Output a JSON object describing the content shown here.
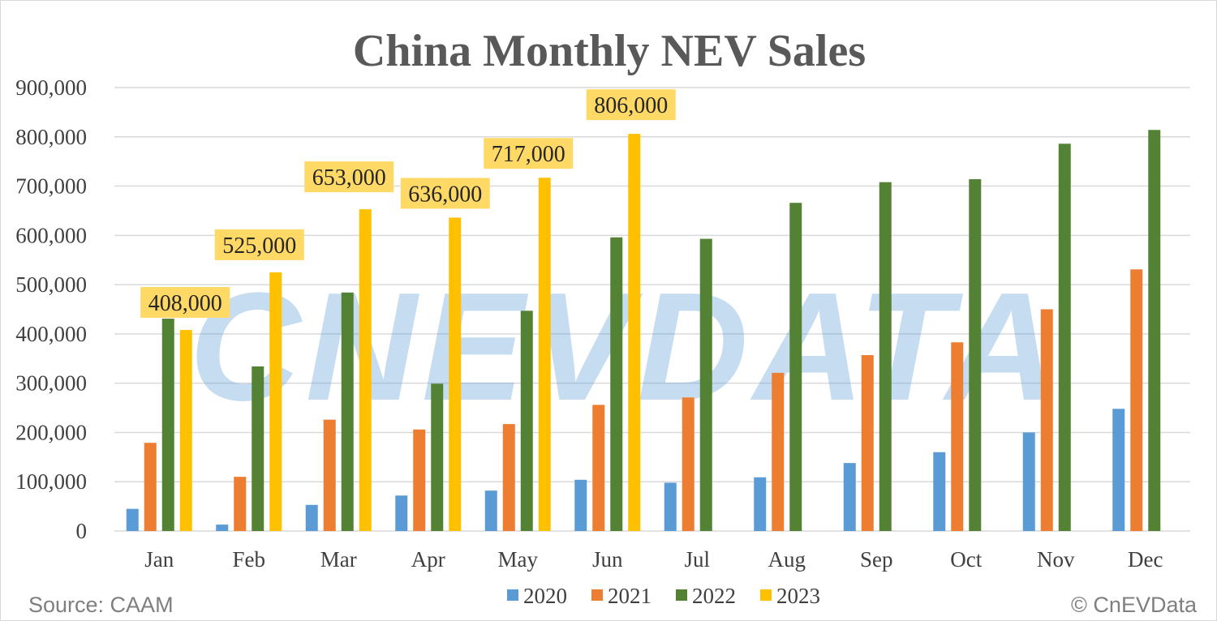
{
  "chart_data": {
    "type": "bar",
    "title": "China Monthly NEV Sales",
    "categories": [
      "Jan",
      "Feb",
      "Mar",
      "Apr",
      "May",
      "Jun",
      "Jul",
      "Aug",
      "Sep",
      "Oct",
      "Nov",
      "Dec"
    ],
    "series": [
      {
        "name": "2020",
        "color": "#5b9bd5",
        "values": [
          45000,
          13000,
          53000,
          72000,
          82000,
          104000,
          98000,
          109000,
          138000,
          160000,
          200000,
          248000
        ]
      },
      {
        "name": "2021",
        "color": "#ed7d31",
        "values": [
          179000,
          110000,
          226000,
          206000,
          217000,
          256000,
          271000,
          321000,
          357000,
          383000,
          450000,
          531000
        ]
      },
      {
        "name": "2022",
        "color": "#548235",
        "values": [
          431000,
          334000,
          484000,
          299000,
          447000,
          596000,
          593000,
          666000,
          708000,
          714000,
          786000,
          814000
        ]
      },
      {
        "name": "2023",
        "color": "#ffc000",
        "values": [
          408000,
          525000,
          653000,
          636000,
          717000,
          806000,
          null,
          null,
          null,
          null,
          null,
          null
        ]
      }
    ],
    "data_labels": [
      "408,000",
      "525,000",
      "653,000",
      "636,000",
      "717,000",
      "806,000"
    ],
    "data_label_fill": "#ffd966",
    "ylim": [
      0,
      900000
    ],
    "yticks": [
      "0",
      "100,000",
      "200,000",
      "300,000",
      "400,000",
      "500,000",
      "600,000",
      "700,000",
      "800,000",
      "900,000"
    ],
    "grid": true,
    "legend": "bottom"
  },
  "source": "Source: CAAM",
  "copyright": "© CnEVData",
  "watermark": "CNEVDATA"
}
